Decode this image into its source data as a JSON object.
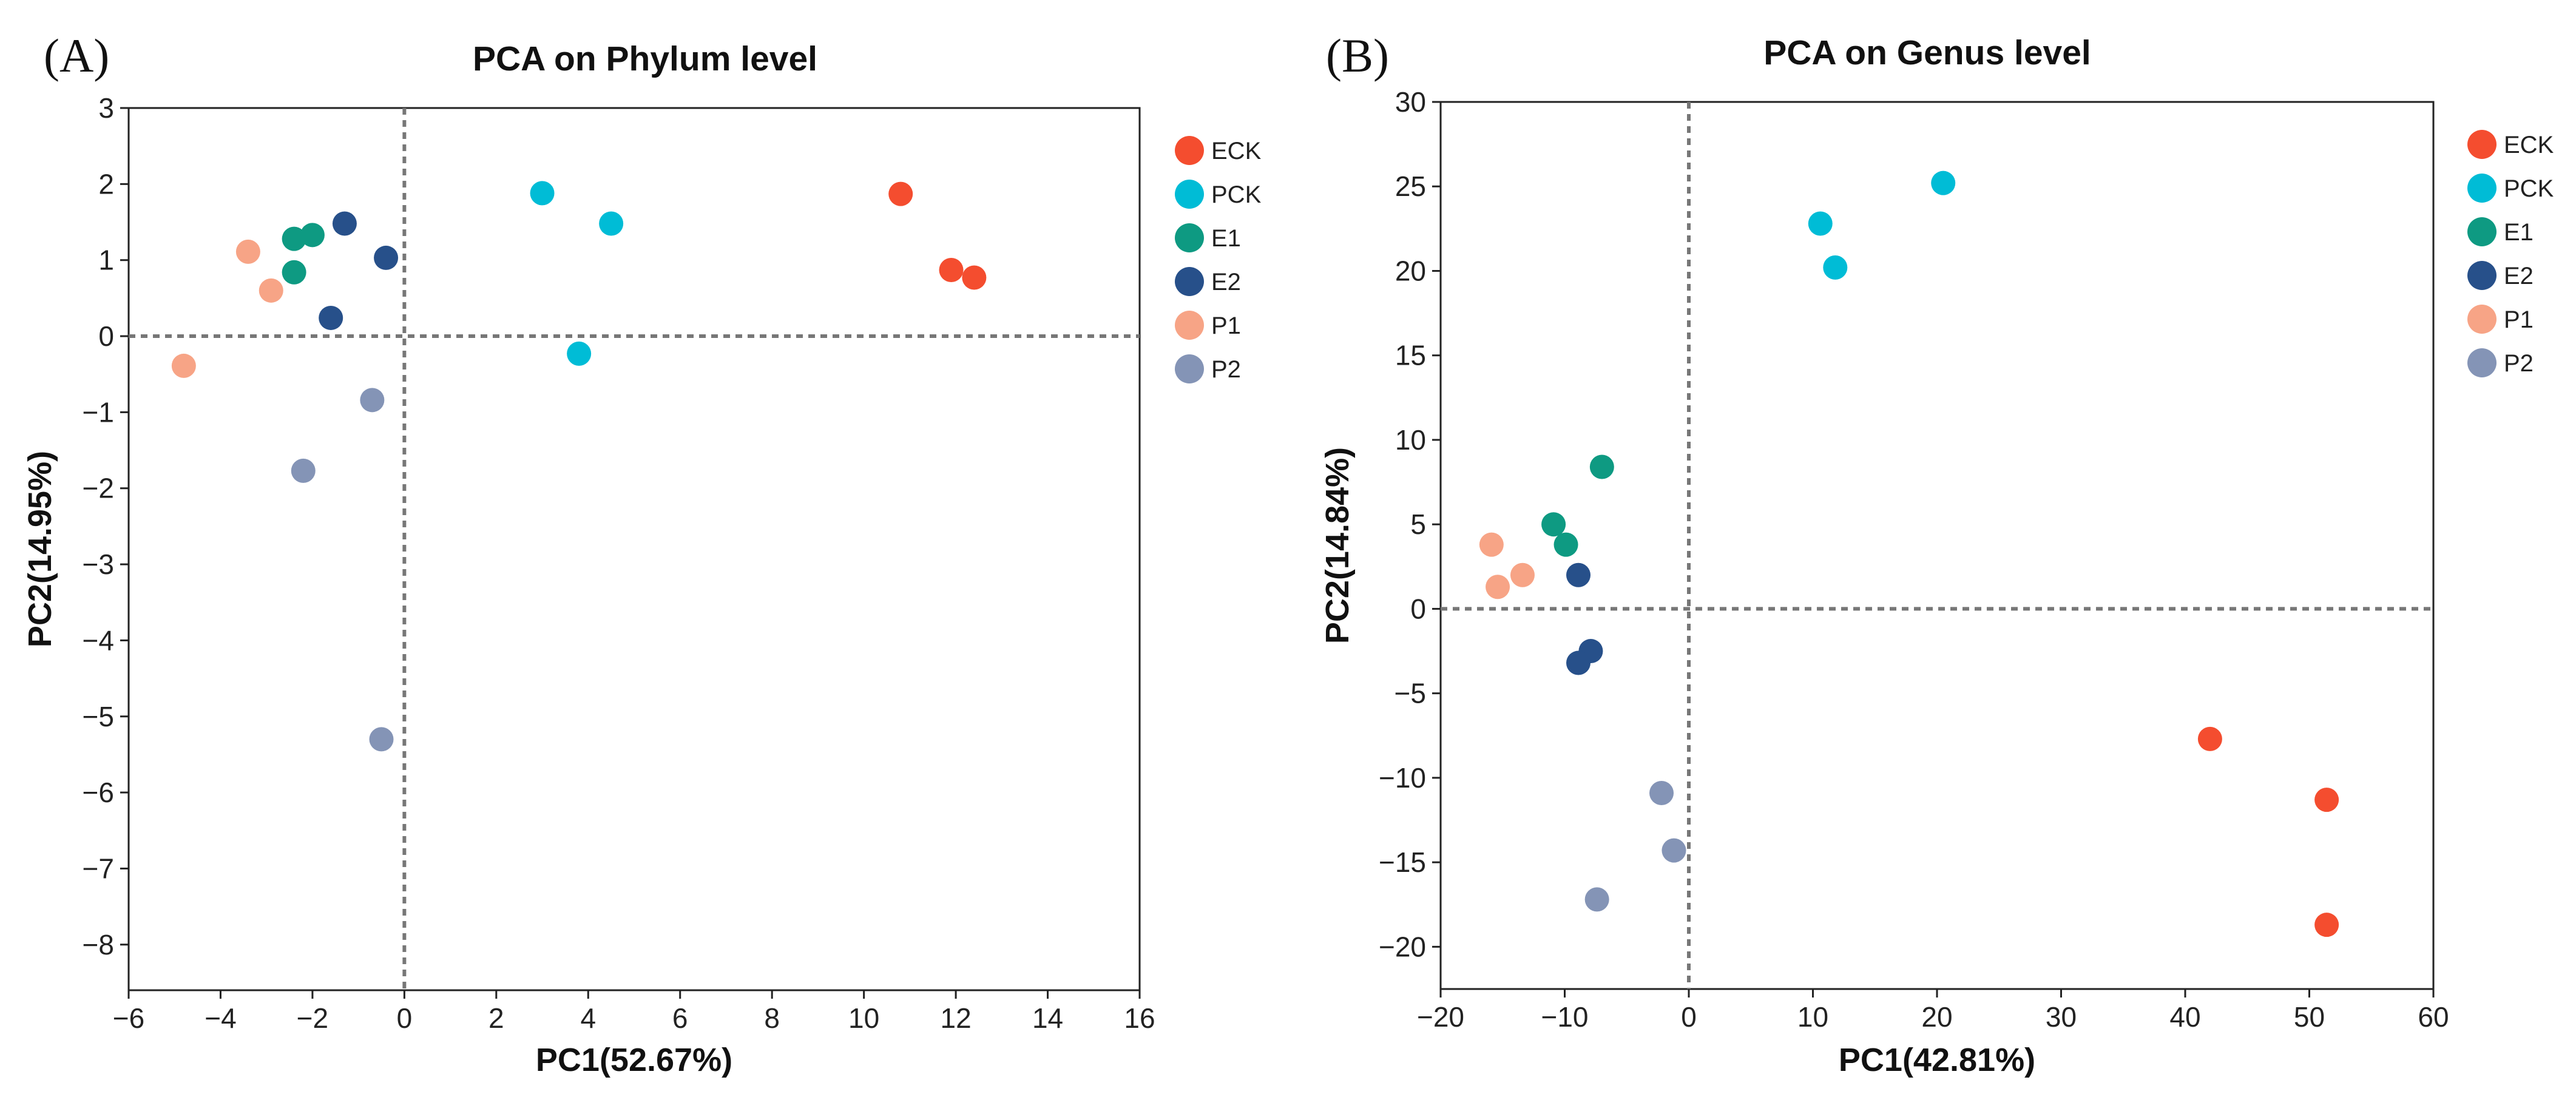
{
  "chart_data": [
    {
      "type": "scatter",
      "panel_label": "(A)",
      "title": "PCA on Phylum level",
      "xlabel": "PC1(52.67%)",
      "ylabel": "PC2(14.95%)",
      "xlim": [
        -6,
        16
      ],
      "ylim": [
        -8.6,
        3
      ],
      "xticks": [
        -6,
        -4,
        -2,
        0,
        2,
        4,
        6,
        8,
        10,
        12,
        14,
        16
      ],
      "xtick_labels": [
        "−6",
        "−4",
        "−2",
        "0",
        "2",
        "4",
        "6",
        "8",
        "10",
        "12",
        "14",
        "16"
      ],
      "yticks": [
        3,
        2,
        1,
        0,
        -1,
        -2,
        -3,
        -4,
        -5,
        -6,
        -7,
        -8
      ],
      "ytick_labels": [
        "3",
        "2",
        "1",
        "0",
        "−1",
        "−2",
        "−3",
        "−4",
        "−5",
        "−6",
        "−7",
        "−8"
      ],
      "reference_lines": {
        "x": 0,
        "y": 0
      },
      "legend_position": "right",
      "series": [
        {
          "name": "ECK",
          "color": "#F44D2F",
          "points": [
            [
              10.8,
              1.87
            ],
            [
              11.9,
              0.87
            ],
            [
              12.4,
              0.77
            ]
          ]
        },
        {
          "name": "PCK",
          "color": "#00BCD6",
          "points": [
            [
              3.0,
              1.88
            ],
            [
              4.5,
              1.48
            ],
            [
              3.8,
              -0.23
            ]
          ]
        },
        {
          "name": "E1",
          "color": "#0E9A82",
          "points": [
            [
              -2.4,
              1.28
            ],
            [
              -2.0,
              1.33
            ],
            [
              -2.4,
              0.84
            ]
          ]
        },
        {
          "name": "E2",
          "color": "#27508A",
          "points": [
            [
              -1.3,
              1.48
            ],
            [
              -0.4,
              1.03
            ],
            [
              -1.6,
              0.24
            ]
          ]
        },
        {
          "name": "P1",
          "color": "#F7A486",
          "points": [
            [
              -3.4,
              1.11
            ],
            [
              -2.9,
              0.6
            ],
            [
              -4.8,
              -0.39
            ]
          ]
        },
        {
          "name": "P2",
          "color": "#8494B6",
          "points": [
            [
              -0.7,
              -0.84
            ],
            [
              -2.2,
              -1.77
            ],
            [
              -0.5,
              -5.3
            ]
          ]
        }
      ]
    },
    {
      "type": "scatter",
      "panel_label": "(B)",
      "title": "PCA on Genus level",
      "xlabel": "PC1(42.81%)",
      "ylabel": "PC2(14.84%)",
      "xlim": [
        -20,
        60
      ],
      "ylim": [
        -22.5,
        30
      ],
      "xticks": [
        -20,
        -10,
        0,
        10,
        20,
        30,
        40,
        50,
        60
      ],
      "xtick_labels": [
        "−20",
        "−10",
        "0",
        "10",
        "20",
        "30",
        "40",
        "50",
        "60"
      ],
      "yticks": [
        30,
        25,
        20,
        15,
        10,
        5,
        0,
        -5,
        -10,
        -15,
        -20
      ],
      "ytick_labels": [
        "30",
        "25",
        "20",
        "15",
        "10",
        "5",
        "0",
        "−5",
        "−10",
        "−15",
        "−20"
      ],
      "reference_lines": {
        "x": 0,
        "y": 0
      },
      "legend_position": "right",
      "series": [
        {
          "name": "ECK",
          "color": "#F44D2F",
          "points": [
            [
              42.0,
              -7.7
            ],
            [
              51.4,
              -11.3
            ],
            [
              51.4,
              -18.7
            ]
          ]
        },
        {
          "name": "PCK",
          "color": "#00BCD6",
          "points": [
            [
              20.5,
              25.2
            ],
            [
              10.6,
              22.8
            ],
            [
              11.8,
              20.2
            ]
          ]
        },
        {
          "name": "E1",
          "color": "#0E9A82",
          "points": [
            [
              -7.0,
              8.4
            ],
            [
              -10.9,
              5.0
            ],
            [
              -9.9,
              3.8
            ]
          ]
        },
        {
          "name": "E2",
          "color": "#27508A",
          "points": [
            [
              -8.9,
              2.0
            ],
            [
              -7.9,
              -2.5
            ],
            [
              -8.9,
              -3.2
            ]
          ]
        },
        {
          "name": "P1",
          "color": "#F7A486",
          "points": [
            [
              -15.9,
              3.8
            ],
            [
              -13.4,
              2.0
            ],
            [
              -15.4,
              1.3
            ]
          ]
        },
        {
          "name": "P2",
          "color": "#8494B6",
          "points": [
            [
              -2.2,
              -10.9
            ],
            [
              -1.2,
              -14.3
            ],
            [
              -7.4,
              -17.2
            ]
          ]
        }
      ]
    }
  ]
}
